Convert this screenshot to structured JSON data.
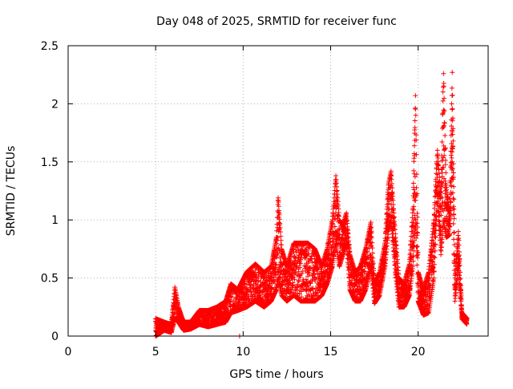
{
  "chart_data": {
    "type": "scatter",
    "title": "Day 048 of 2025, SRMTID for receiver func",
    "xlabel": "GPS time / hours",
    "ylabel": "SRMTID / TECUs",
    "xlim": [
      0,
      24
    ],
    "ylim": [
      0,
      2.5
    ],
    "x_ticks": [
      0,
      5,
      10,
      15,
      20
    ],
    "x_tick_labels": [
      "0",
      "5",
      "10",
      "15",
      "20"
    ],
    "y_ticks": [
      0,
      0.5,
      1,
      1.5,
      2,
      2.5
    ],
    "y_tick_labels": [
      "0",
      "0.5",
      "1",
      "1.5",
      "2",
      "2.5"
    ],
    "grid": true,
    "marker": "+",
    "colors": {
      "series": "#ff0000",
      "grid": "#b0b0b0",
      "axis": "#000000"
    },
    "outliers": [
      [
        5.0,
        0.0
      ],
      [
        9.8,
        0.0
      ]
    ],
    "envelope": [
      [
        5.0,
        0.0,
        0.15
      ],
      [
        5.5,
        0.05,
        0.12
      ],
      [
        5.9,
        0.03,
        0.1
      ],
      [
        6.1,
        0.15,
        0.42
      ],
      [
        6.3,
        0.12,
        0.25
      ],
      [
        6.6,
        0.05,
        0.12
      ],
      [
        7.0,
        0.06,
        0.12
      ],
      [
        7.5,
        0.1,
        0.22
      ],
      [
        8.0,
        0.08,
        0.22
      ],
      [
        8.5,
        0.1,
        0.25
      ],
      [
        9.0,
        0.12,
        0.3
      ],
      [
        9.3,
        0.2,
        0.45
      ],
      [
        9.7,
        0.22,
        0.4
      ],
      [
        10.2,
        0.25,
        0.55
      ],
      [
        10.7,
        0.3,
        0.62
      ],
      [
        11.2,
        0.25,
        0.55
      ],
      [
        11.6,
        0.3,
        0.6
      ],
      [
        11.9,
        0.4,
        0.85
      ],
      [
        12.0,
        0.5,
        1.19
      ],
      [
        12.2,
        0.35,
        0.75
      ],
      [
        12.5,
        0.3,
        0.6
      ],
      [
        12.9,
        0.35,
        0.8
      ],
      [
        13.3,
        0.3,
        0.8
      ],
      [
        13.7,
        0.3,
        0.8
      ],
      [
        14.1,
        0.3,
        0.75
      ],
      [
        14.5,
        0.35,
        0.6
      ],
      [
        14.8,
        0.45,
        0.75
      ],
      [
        15.1,
        0.6,
        1.0
      ],
      [
        15.3,
        0.8,
        1.38
      ],
      [
        15.5,
        0.6,
        1.0
      ],
      [
        15.7,
        0.7,
        0.95
      ],
      [
        15.9,
        0.8,
        1.06
      ],
      [
        16.1,
        0.4,
        0.7
      ],
      [
        16.4,
        0.3,
        0.55
      ],
      [
        16.7,
        0.3,
        0.6
      ],
      [
        17.0,
        0.4,
        0.75
      ],
      [
        17.3,
        0.6,
        0.98
      ],
      [
        17.5,
        0.28,
        0.45
      ],
      [
        17.8,
        0.35,
        0.55
      ],
      [
        18.1,
        0.6,
        0.8
      ],
      [
        18.3,
        0.9,
        1.3
      ],
      [
        18.45,
        1.0,
        1.42
      ],
      [
        18.7,
        0.55,
        0.88
      ],
      [
        18.9,
        0.25,
        0.5
      ],
      [
        19.2,
        0.25,
        0.45
      ],
      [
        19.5,
        0.35,
        0.62
      ],
      [
        19.7,
        0.6,
        1.1
      ],
      [
        19.85,
        1.0,
        2.07
      ],
      [
        20.0,
        0.3,
        0.55
      ],
      [
        20.3,
        0.18,
        0.4
      ],
      [
        20.6,
        0.2,
        0.55
      ],
      [
        20.9,
        0.5,
        1.0
      ],
      [
        21.1,
        1.2,
        1.6
      ],
      [
        21.3,
        0.7,
        1.2
      ],
      [
        21.45,
        1.0,
        2.26
      ],
      [
        21.6,
        0.85,
        1.3
      ],
      [
        21.8,
        0.87,
        1.05
      ],
      [
        21.95,
        1.5,
        2.27
      ],
      [
        22.1,
        0.3,
        0.5
      ],
      [
        22.3,
        0.6,
        0.9
      ],
      [
        22.5,
        0.15,
        0.2
      ],
      [
        22.8,
        0.1,
        0.15
      ]
    ]
  }
}
